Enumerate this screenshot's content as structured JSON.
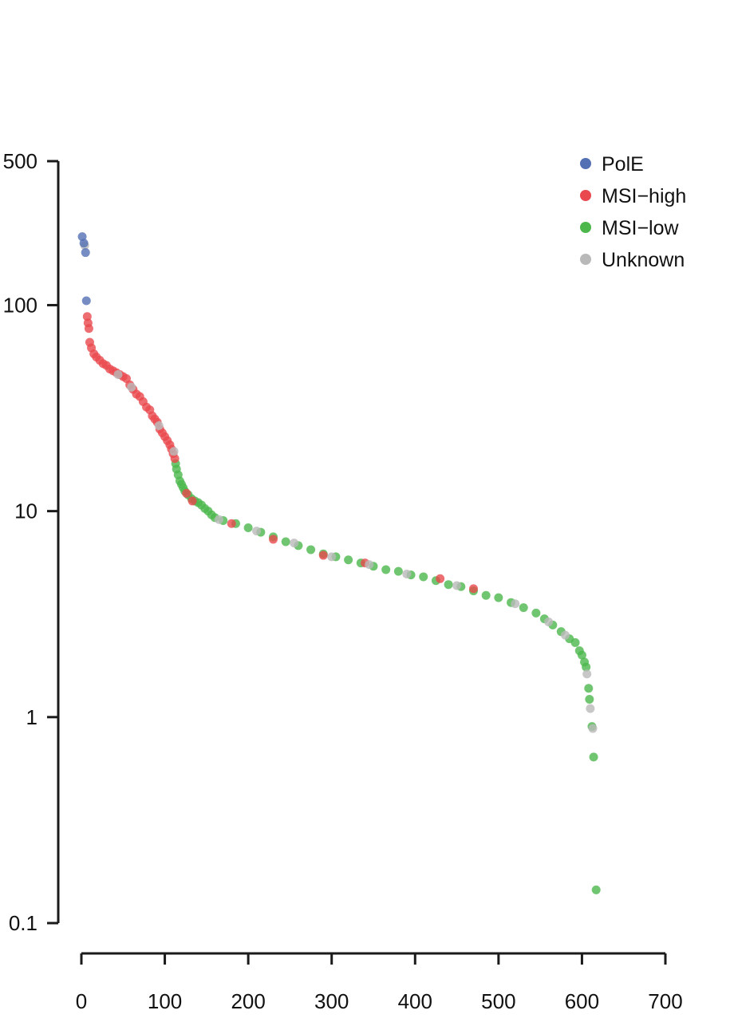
{
  "chart_data": {
    "type": "scatter",
    "title": "",
    "xlabel": "",
    "ylabel": "",
    "x_scale": "linear",
    "y_scale": "log10",
    "xlim": [
      0,
      700
    ],
    "ylim": [
      0.1,
      500
    ],
    "x_ticks": [
      {
        "value": 0,
        "label": "0"
      },
      {
        "value": 100,
        "label": "100"
      },
      {
        "value": 200,
        "label": "200"
      },
      {
        "value": 300,
        "label": "300"
      },
      {
        "value": 400,
        "label": "400"
      },
      {
        "value": 500,
        "label": "500"
      },
      {
        "value": 600,
        "label": "600"
      },
      {
        "value": 700,
        "label": "700"
      }
    ],
    "y_ticks": [
      {
        "value": 500,
        "label": "500"
      },
      {
        "value": 100,
        "label": "100"
      },
      {
        "value": 10,
        "label": "10"
      },
      {
        "value": 1,
        "label": "1"
      },
      {
        "value": 0.1,
        "label": "0.1"
      }
    ],
    "grid": false,
    "legend_position": "top-right",
    "legend": [
      {
        "name": "PolE",
        "color": "#5470b4"
      },
      {
        "name": "MSI−high",
        "color": "#e8484e"
      },
      {
        "name": "MSI−low",
        "color": "#4cb84c"
      },
      {
        "name": "Unknown",
        "color": "#b9b9b9"
      }
    ],
    "series": [
      {
        "name": "PolE",
        "color": "#5470b4",
        "points": [
          [
            1,
            215
          ],
          [
            3,
            200
          ],
          [
            5,
            180
          ],
          [
            6,
            105
          ]
        ]
      },
      {
        "name": "MSI−high",
        "color": "#e8484e",
        "points": [
          [
            7,
            88
          ],
          [
            8,
            82
          ],
          [
            9,
            77
          ],
          [
            10,
            66
          ],
          [
            12,
            62
          ],
          [
            15,
            58
          ],
          [
            18,
            56
          ],
          [
            22,
            54
          ],
          [
            26,
            52
          ],
          [
            30,
            51
          ],
          [
            34,
            49
          ],
          [
            38,
            48
          ],
          [
            42,
            47
          ],
          [
            46,
            46
          ],
          [
            50,
            45
          ],
          [
            54,
            44
          ],
          [
            58,
            41
          ],
          [
            62,
            39
          ],
          [
            66,
            37
          ],
          [
            70,
            36
          ],
          [
            74,
            34
          ],
          [
            78,
            32
          ],
          [
            82,
            31
          ],
          [
            85,
            29
          ],
          [
            88,
            28
          ],
          [
            91,
            27
          ],
          [
            94,
            25
          ],
          [
            97,
            24
          ],
          [
            100,
            23
          ],
          [
            103,
            22
          ],
          [
            106,
            21
          ],
          [
            108,
            20
          ],
          [
            110,
            19
          ],
          [
            112,
            18
          ],
          [
            126,
            12.2
          ],
          [
            133,
            11.2
          ],
          [
            180,
            8.7
          ],
          [
            230,
            7.3
          ],
          [
            290,
            6.1
          ],
          [
            340,
            5.6
          ],
          [
            430,
            4.7
          ],
          [
            470,
            4.2
          ]
        ]
      },
      {
        "name": "MSI−low",
        "color": "#4cb84c",
        "points": [
          [
            113,
            17
          ],
          [
            114,
            16
          ],
          [
            116,
            15
          ],
          [
            118,
            14
          ],
          [
            120,
            13.5
          ],
          [
            122,
            13
          ],
          [
            124,
            12.5
          ],
          [
            128,
            12
          ],
          [
            132,
            11.5
          ],
          [
            136,
            11.2
          ],
          [
            140,
            11
          ],
          [
            144,
            10.7
          ],
          [
            148,
            10.3
          ],
          [
            152,
            10
          ],
          [
            156,
            9.6
          ],
          [
            160,
            9.3
          ],
          [
            170,
            9
          ],
          [
            185,
            8.7
          ],
          [
            200,
            8.3
          ],
          [
            215,
            7.9
          ],
          [
            230,
            7.5
          ],
          [
            245,
            7.1
          ],
          [
            260,
            6.8
          ],
          [
            275,
            6.5
          ],
          [
            290,
            6.2
          ],
          [
            305,
            6
          ],
          [
            320,
            5.8
          ],
          [
            335,
            5.6
          ],
          [
            350,
            5.4
          ],
          [
            365,
            5.2
          ],
          [
            380,
            5.1
          ],
          [
            395,
            4.9
          ],
          [
            410,
            4.8
          ],
          [
            425,
            4.6
          ],
          [
            440,
            4.4
          ],
          [
            455,
            4.3
          ],
          [
            470,
            4.1
          ],
          [
            485,
            3.9
          ],
          [
            500,
            3.8
          ],
          [
            515,
            3.6
          ],
          [
            530,
            3.4
          ],
          [
            545,
            3.2
          ],
          [
            555,
            3
          ],
          [
            565,
            2.8
          ],
          [
            575,
            2.6
          ],
          [
            585,
            2.4
          ],
          [
            592,
            2.3
          ],
          [
            597,
            2.1
          ],
          [
            600,
            2
          ],
          [
            603,
            1.85
          ],
          [
            605,
            1.75
          ],
          [
            608,
            1.38
          ],
          [
            609,
            1.22
          ],
          [
            612,
            0.9
          ],
          [
            614,
            0.64
          ],
          [
            617,
            0.145
          ]
        ]
      },
      {
        "name": "Unknown",
        "color": "#b9b9b9",
        "points": [
          [
            4,
            195
          ],
          [
            44,
            46
          ],
          [
            60,
            40
          ],
          [
            93,
            26
          ],
          [
            111,
            19.5
          ],
          [
            165,
            9.1
          ],
          [
            210,
            8
          ],
          [
            255,
            7
          ],
          [
            300,
            6
          ],
          [
            345,
            5.5
          ],
          [
            390,
            4.95
          ],
          [
            450,
            4.35
          ],
          [
            520,
            3.55
          ],
          [
            560,
            2.9
          ],
          [
            580,
            2.5
          ],
          [
            606,
            1.62
          ],
          [
            610,
            1.1
          ],
          [
            613,
            0.88
          ]
        ]
      }
    ]
  }
}
